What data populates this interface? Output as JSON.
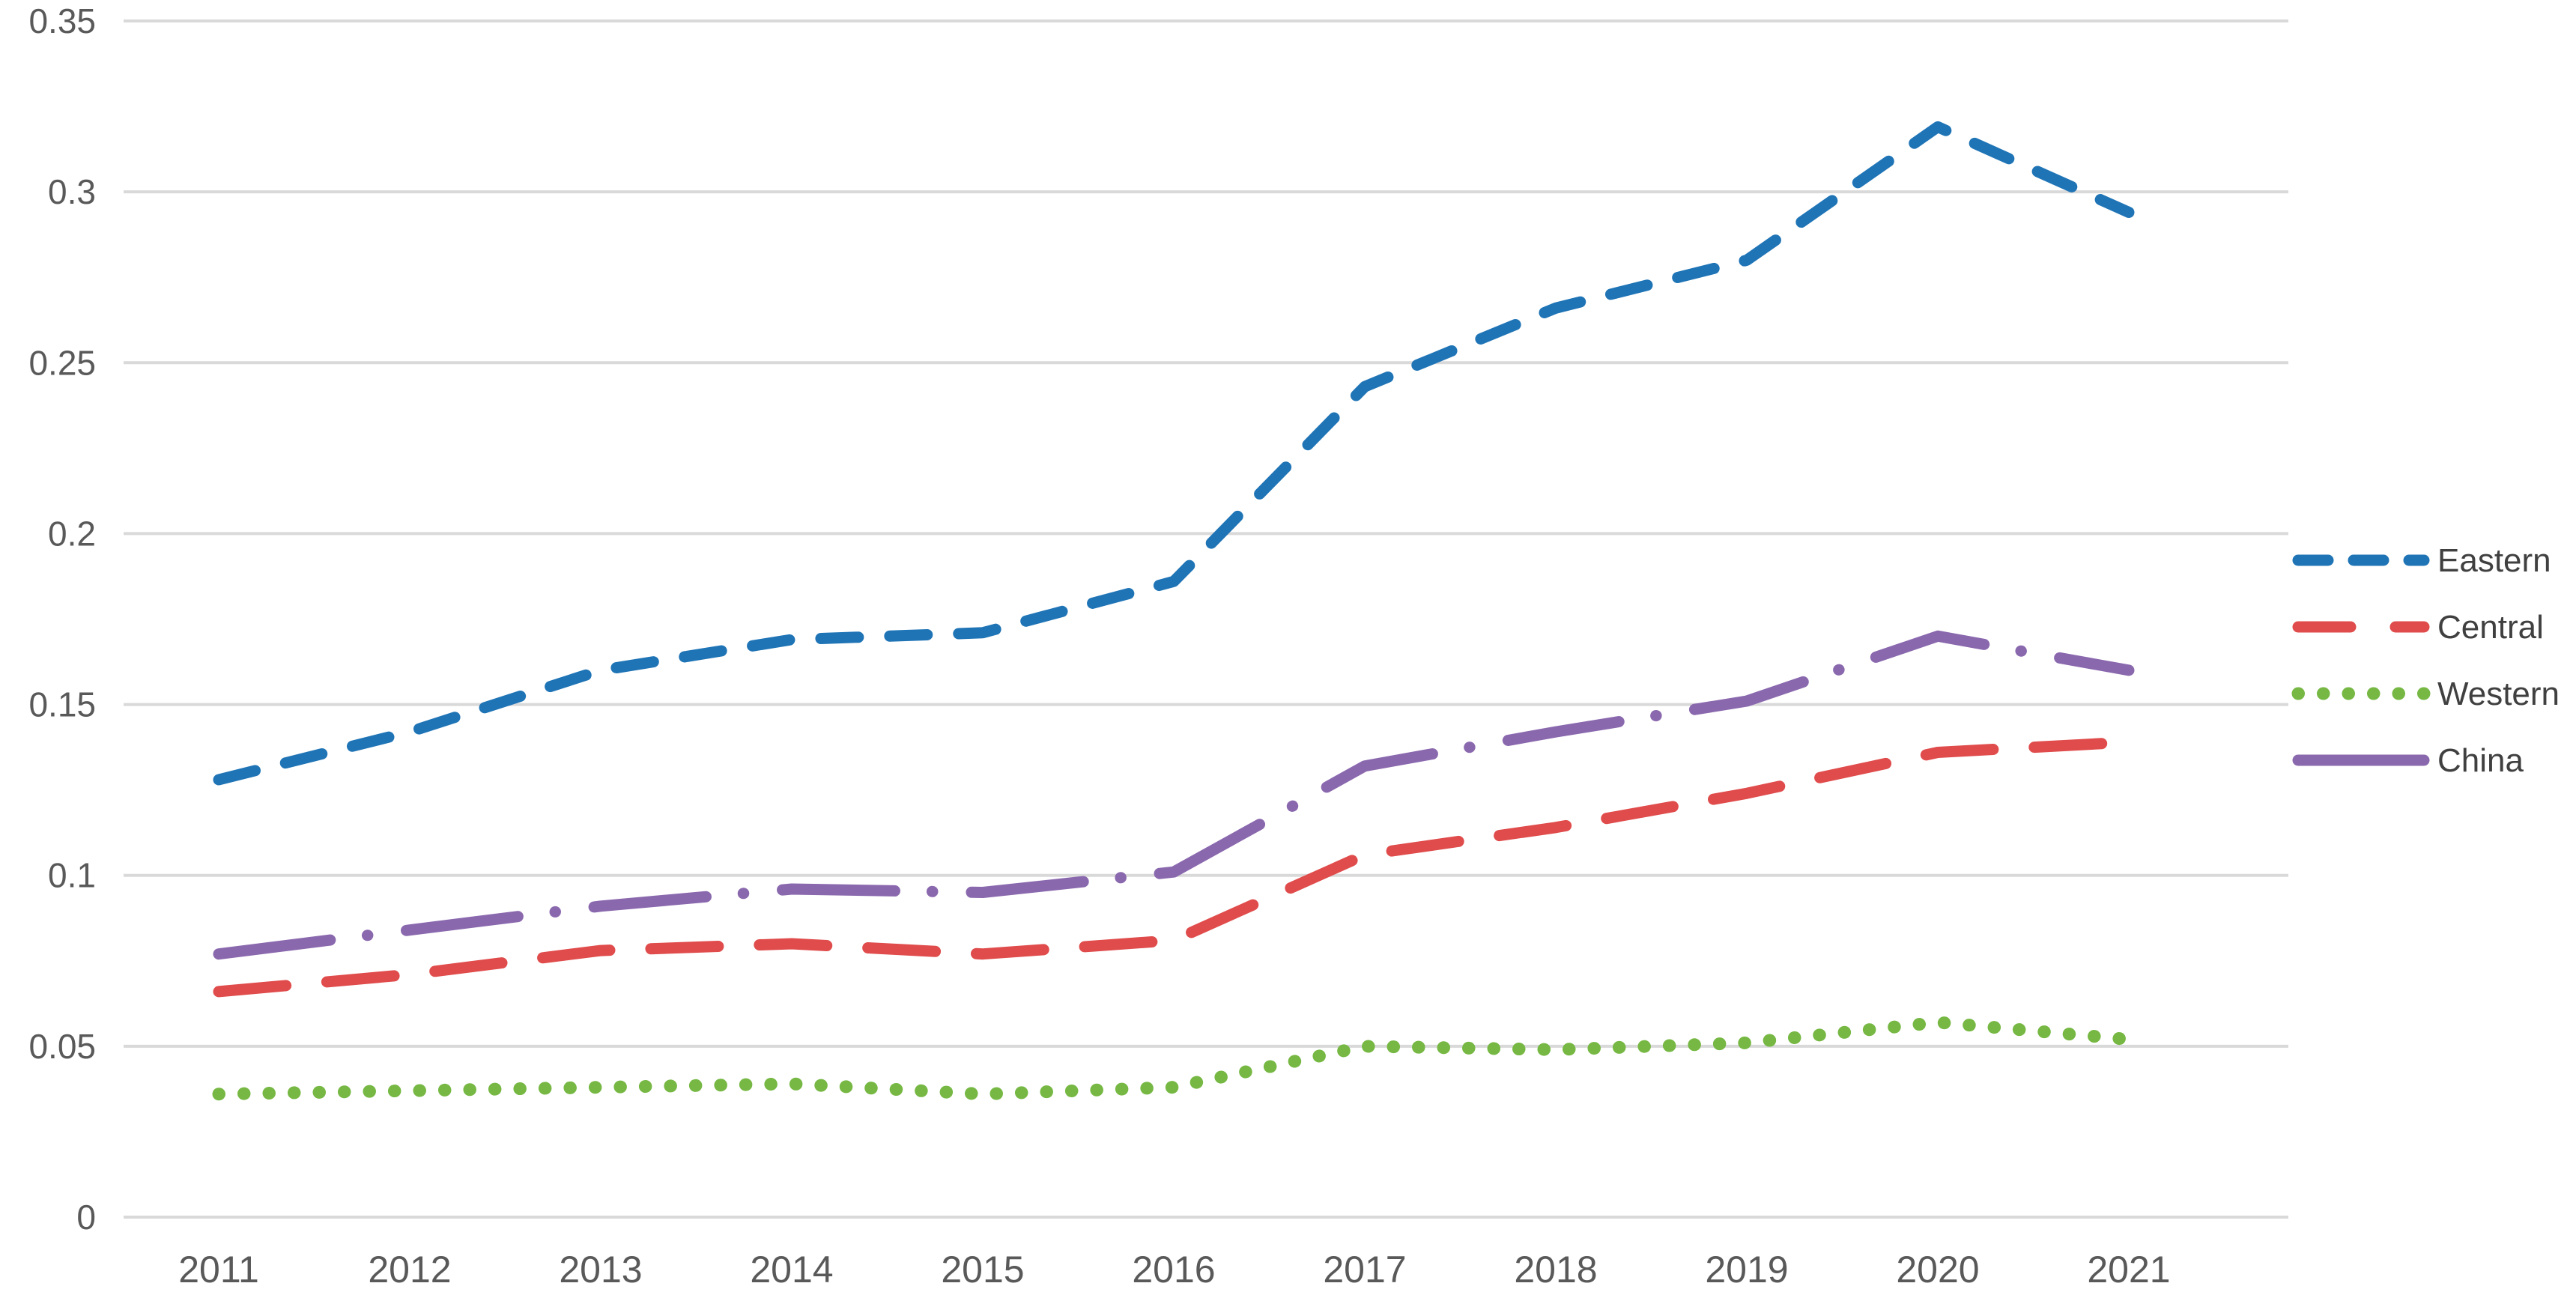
{
  "chart_data": {
    "type": "line",
    "title": "",
    "xlabel": "",
    "ylabel": "",
    "x": [
      "2011",
      "2012",
      "2013",
      "2014",
      "2015",
      "2016",
      "2017",
      "2018",
      "2019",
      "2020",
      "2021"
    ],
    "series": [
      {
        "name": "Eastern",
        "color": "#1F74B6",
        "line_style": "dash",
        "values": [
          0.128,
          0.142,
          0.16,
          0.169,
          0.171,
          0.186,
          0.243,
          0.266,
          0.28,
          0.319,
          0.294
        ]
      },
      {
        "name": "Central",
        "color": "#E04B4B",
        "line_style": "long-dash",
        "values": [
          0.066,
          0.071,
          0.078,
          0.08,
          0.077,
          0.081,
          0.106,
          0.114,
          0.124,
          0.136,
          0.139
        ]
      },
      {
        "name": "Western",
        "color": "#76B843",
        "line_style": "dot",
        "values": [
          0.036,
          0.037,
          0.038,
          0.039,
          0.036,
          0.038,
          0.05,
          0.049,
          0.051,
          0.057,
          0.052
        ]
      },
      {
        "name": "China",
        "color": "#8A68AE",
        "line_style": "long-dash-dot",
        "values": [
          0.077,
          0.084,
          0.091,
          0.096,
          0.095,
          0.101,
          0.132,
          0.142,
          0.151,
          0.17,
          0.16
        ]
      }
    ],
    "ylim": [
      0,
      0.35
    ],
    "y_ticks": [
      0,
      0.05,
      0.1,
      0.15,
      0.2,
      0.25,
      0.3,
      0.35
    ],
    "y_tick_labels": [
      "0",
      "0.05",
      "0.1",
      "0.15",
      "0.2",
      "0.25",
      "0.3",
      "0.35"
    ],
    "grid": "horizontal",
    "legend_position": "right"
  },
  "colors": {
    "background": "#FFFFFF",
    "gridline": "#D9D9D9",
    "axis_text": "#595959",
    "legend_text": "#404040"
  }
}
